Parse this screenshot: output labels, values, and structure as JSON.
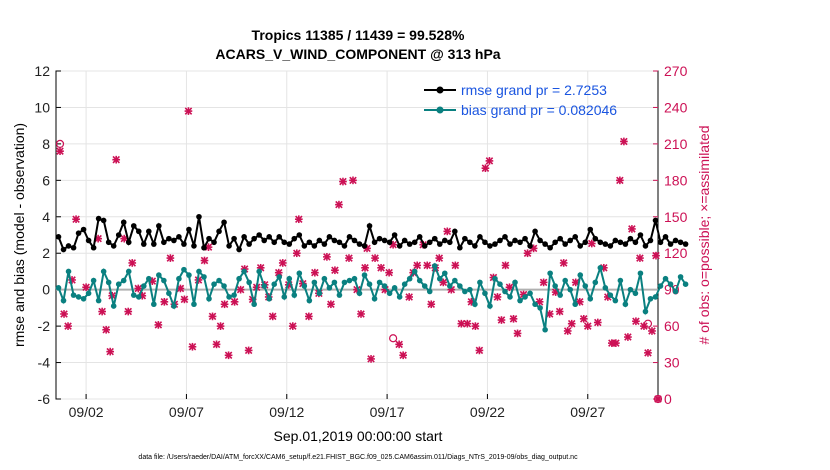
{
  "chart_data": {
    "type": "line",
    "title_line1": "Tropics 11385 / 11439 = 99.528%",
    "title_line2": "ACARS_V_WIND_COMPONENT @ 313 hPa",
    "xlabel": "Sep.01,2019 00:00:00 start",
    "ylabel_left": "rmse and bias (model - observation)",
    "ylabel_right": "# of obs: o=possible; ×=assimilated",
    "footer": "data file: /Users/raeder/DAI/ATM_forcXX/CAM6_setup/f.e21.FHIST_BGC.f09_025.CAM6assim.011/Diags_NTrS_2019-09/obs_diag_output.nc",
    "xlim": [
      0.5,
      30.5
    ],
    "ylim_left": [
      -6,
      12
    ],
    "ylim_right": [
      0,
      270
    ],
    "x_ticks": [
      {
        "value": 2,
        "label": "09/02"
      },
      {
        "value": 7,
        "label": "09/07"
      },
      {
        "value": 12,
        "label": "09/12"
      },
      {
        "value": 17,
        "label": "09/17"
      },
      {
        "value": 22,
        "label": "09/22"
      },
      {
        "value": 27,
        "label": "09/27"
      }
    ],
    "y_ticks_left": [
      {
        "value": 12,
        "label": "12"
      },
      {
        "value": 10,
        "label": "10"
      },
      {
        "value": 8,
        "label": "8"
      },
      {
        "value": 6,
        "label": "6"
      },
      {
        "value": 4,
        "label": "4"
      },
      {
        "value": 2,
        "label": "2"
      },
      {
        "value": 0,
        "label": "0"
      },
      {
        "value": -2,
        "label": "-2"
      },
      {
        "value": -4,
        "label": "-4"
      },
      {
        "value": -6,
        "label": "-6"
      }
    ],
    "y_ticks_right": [
      {
        "value": 270,
        "label": "270"
      },
      {
        "value": 240,
        "label": "240"
      },
      {
        "value": 210,
        "label": "210"
      },
      {
        "value": 180,
        "label": "180"
      },
      {
        "value": 150,
        "label": "150"
      },
      {
        "value": 120,
        "label": "120"
      },
      {
        "value": 90,
        "label": "90"
      },
      {
        "value": 60,
        "label": "60"
      },
      {
        "value": 30,
        "label": "30"
      },
      {
        "value": 0,
        "label": "0"
      }
    ],
    "legend": [
      {
        "name": "rmse grand pr = 2.7253",
        "color": "#000000"
      },
      {
        "name": "bias grand pr = 0.082046",
        "color": "#0a8080"
      }
    ],
    "x_start": 0.625,
    "x_step": 0.25,
    "series": [
      {
        "name": "rmse",
        "color": "#000000",
        "values": [
          2.9,
          2.2,
          2.4,
          2.3,
          3.1,
          3.3,
          2.7,
          2.3,
          3.9,
          3.8,
          2.6,
          2.4,
          3.0,
          3.7,
          2.6,
          3.5,
          3.2,
          2.5,
          3.2,
          2.5,
          3.5,
          2.6,
          2.8,
          2.7,
          2.9,
          2.5,
          3.3,
          2.4,
          4.0,
          2.3,
          2.8,
          2.6,
          3.2,
          3.7,
          2.4,
          2.8,
          2.2,
          2.9,
          2.5,
          2.8,
          3.0,
          2.7,
          2.9,
          2.6,
          2.9,
          2.6,
          2.5,
          2.8,
          3.0,
          2.4,
          2.6,
          2.4,
          2.7,
          2.5,
          2.9,
          2.7,
          2.6,
          2.4,
          2.9,
          2.7,
          2.5,
          2.4,
          3.5,
          2.6,
          2.8,
          2.7,
          2.6,
          3.0,
          2.4,
          2.7,
          2.5,
          2.6,
          2.9,
          2.4,
          2.6,
          2.8,
          2.5,
          2.7,
          2.6,
          3.2,
          2.3,
          2.8,
          2.6,
          2.4,
          2.9,
          2.6,
          2.4,
          2.5,
          2.7,
          2.9,
          2.5,
          2.7,
          2.6,
          2.8,
          2.4,
          3.2,
          2.7,
          2.5,
          2.3,
          2.6,
          2.8,
          2.5,
          2.7,
          2.9,
          2.4,
          2.6,
          3.3,
          2.8,
          2.6,
          2.5,
          2.4,
          2.7,
          2.6,
          2.5,
          2.8,
          2.6,
          3.0,
          2.4,
          2.7,
          3.8,
          2.6,
          2.9,
          2.5,
          2.7,
          2.6,
          2.5
        ]
      },
      {
        "name": "bias",
        "color": "#0a8080",
        "values": [
          0.1,
          -0.6,
          1.0,
          -0.3,
          -0.4,
          -0.5,
          -0.2,
          0.5,
          -0.6,
          1.0,
          0.4,
          -0.9,
          0.3,
          0.5,
          1.0,
          -0.3,
          -0.4,
          0.2,
          0.6,
          -0.8,
          0.8,
          0.5,
          -0.2,
          -0.9,
          0.6,
          1.1,
          0.8,
          -0.8,
          1.0,
          0.7,
          -0.5,
          0.3,
          0.5,
          0.2,
          -0.4,
          -0.3,
          0.6,
          1.0,
          0.4,
          -0.8,
          1.0,
          0.2,
          -0.5,
          0.3,
          0.7,
          -0.4,
          0.6,
          -0.3,
          0.9,
          0.2,
          -0.6,
          0.4,
          -0.2,
          0.6,
          0.1,
          0.4,
          -0.3,
          0.4,
          0.5,
          0.6,
          -0.2,
          0.8,
          0.3,
          -0.5,
          0.4,
          0.2,
          -0.2,
          0.1,
          -0.4,
          0.3,
          0.6,
          1.0,
          0.5,
          0.2,
          -0.1,
          1.3,
          0.6,
          0.9,
          0.2,
          0.5,
          0.2,
          -0.1,
          0.0,
          -0.8,
          0.4,
          -0.2,
          -0.9,
          0.6,
          0.3,
          -0.1,
          -0.4,
          0.4,
          -0.6,
          -0.4,
          -0.2,
          -0.8,
          -1.0,
          -2.2,
          0.9,
          0.2,
          -0.3,
          0.5,
          0.0,
          -0.8,
          0.8,
          0.2,
          -0.5,
          0.4,
          1.2,
          0.1,
          -0.3,
          -0.6,
          0.5,
          -0.8,
          0.0,
          -0.2,
          0.9,
          -1.2,
          -0.5,
          -0.4,
          0.2,
          0.6,
          0.3,
          -0.1,
          0.7,
          0.3
        ]
      }
    ],
    "obs_assimilated": [
      {
        "x": 0.7,
        "y": 204
      },
      {
        "x": 0.9,
        "y": 70
      },
      {
        "x": 1.1,
        "y": 60
      },
      {
        "x": 1.3,
        "y": 98
      },
      {
        "x": 1.5,
        "y": 148
      },
      {
        "x": 2.0,
        "y": 92
      },
      {
        "x": 2.6,
        "y": 132
      },
      {
        "x": 2.8,
        "y": 72
      },
      {
        "x": 3.0,
        "y": 57
      },
      {
        "x": 3.2,
        "y": 39
      },
      {
        "x": 3.3,
        "y": 85
      },
      {
        "x": 3.5,
        "y": 197
      },
      {
        "x": 3.9,
        "y": 132
      },
      {
        "x": 4.1,
        "y": 72
      },
      {
        "x": 4.3,
        "y": 112
      },
      {
        "x": 4.6,
        "y": 91
      },
      {
        "x": 4.8,
        "y": 85
      },
      {
        "x": 5.3,
        "y": 97
      },
      {
        "x": 5.6,
        "y": 61
      },
      {
        "x": 5.9,
        "y": 80
      },
      {
        "x": 6.2,
        "y": 116
      },
      {
        "x": 6.4,
        "y": 78
      },
      {
        "x": 6.7,
        "y": 91
      },
      {
        "x": 6.9,
        "y": 82
      },
      {
        "x": 7.1,
        "y": 237
      },
      {
        "x": 7.3,
        "y": 43
      },
      {
        "x": 7.6,
        "y": 98
      },
      {
        "x": 7.9,
        "y": 114
      },
      {
        "x": 8.1,
        "y": 125
      },
      {
        "x": 8.3,
        "y": 68
      },
      {
        "x": 8.5,
        "y": 45
      },
      {
        "x": 8.7,
        "y": 60
      },
      {
        "x": 8.9,
        "y": 78
      },
      {
        "x": 9.1,
        "y": 36
      },
      {
        "x": 9.4,
        "y": 80
      },
      {
        "x": 9.7,
        "y": 90
      },
      {
        "x": 9.9,
        "y": 107
      },
      {
        "x": 10.1,
        "y": 40
      },
      {
        "x": 10.3,
        "y": 82
      },
      {
        "x": 10.5,
        "y": 92
      },
      {
        "x": 10.7,
        "y": 108
      },
      {
        "x": 10.9,
        "y": 94
      },
      {
        "x": 11.1,
        "y": 84
      },
      {
        "x": 11.3,
        "y": 68
      },
      {
        "x": 11.6,
        "y": 104
      },
      {
        "x": 11.8,
        "y": 112
      },
      {
        "x": 12.1,
        "y": 94
      },
      {
        "x": 12.3,
        "y": 60
      },
      {
        "x": 12.5,
        "y": 120
      },
      {
        "x": 12.6,
        "y": 148
      },
      {
        "x": 12.8,
        "y": 95
      },
      {
        "x": 13.1,
        "y": 68
      },
      {
        "x": 13.4,
        "y": 104
      },
      {
        "x": 13.6,
        "y": 87
      },
      {
        "x": 14.0,
        "y": 117
      },
      {
        "x": 14.2,
        "y": 78
      },
      {
        "x": 14.4,
        "y": 106
      },
      {
        "x": 14.6,
        "y": 160
      },
      {
        "x": 14.8,
        "y": 179
      },
      {
        "x": 15.1,
        "y": 116
      },
      {
        "x": 15.3,
        "y": 180
      },
      {
        "x": 15.5,
        "y": 90
      },
      {
        "x": 15.7,
        "y": 70
      },
      {
        "x": 15.9,
        "y": 108
      },
      {
        "x": 16.0,
        "y": 124
      },
      {
        "x": 16.2,
        "y": 33
      },
      {
        "x": 16.4,
        "y": 116
      },
      {
        "x": 16.7,
        "y": 108
      },
      {
        "x": 16.9,
        "y": 90
      },
      {
        "x": 17.1,
        "y": 104
      },
      {
        "x": 17.3,
        "y": 127
      },
      {
        "x": 17.6,
        "y": 45
      },
      {
        "x": 17.8,
        "y": 36
      },
      {
        "x": 18.1,
        "y": 84
      },
      {
        "x": 18.3,
        "y": 104
      },
      {
        "x": 18.5,
        "y": 110
      },
      {
        "x": 18.8,
        "y": 127
      },
      {
        "x": 19.0,
        "y": 110
      },
      {
        "x": 19.2,
        "y": 78
      },
      {
        "x": 19.4,
        "y": 108
      },
      {
        "x": 19.6,
        "y": 116
      },
      {
        "x": 19.8,
        "y": 96
      },
      {
        "x": 20.0,
        "y": 138
      },
      {
        "x": 20.2,
        "y": 90
      },
      {
        "x": 20.4,
        "y": 110
      },
      {
        "x": 20.7,
        "y": 62
      },
      {
        "x": 21.0,
        "y": 62
      },
      {
        "x": 21.2,
        "y": 80
      },
      {
        "x": 21.4,
        "y": 60
      },
      {
        "x": 21.6,
        "y": 40
      },
      {
        "x": 21.9,
        "y": 190
      },
      {
        "x": 22.1,
        "y": 196
      },
      {
        "x": 22.3,
        "y": 100
      },
      {
        "x": 22.5,
        "y": 84
      },
      {
        "x": 22.7,
        "y": 65
      },
      {
        "x": 22.9,
        "y": 110
      },
      {
        "x": 23.1,
        "y": 92
      },
      {
        "x": 23.3,
        "y": 66
      },
      {
        "x": 23.5,
        "y": 54
      },
      {
        "x": 23.8,
        "y": 86
      },
      {
        "x": 24.0,
        "y": 120
      },
      {
        "x": 24.3,
        "y": 124
      },
      {
        "x": 24.6,
        "y": 80
      },
      {
        "x": 24.8,
        "y": 96
      },
      {
        "x": 25.1,
        "y": 70
      },
      {
        "x": 25.4,
        "y": 88
      },
      {
        "x": 25.6,
        "y": 72
      },
      {
        "x": 25.8,
        "y": 112
      },
      {
        "x": 26.0,
        "y": 56
      },
      {
        "x": 26.2,
        "y": 62
      },
      {
        "x": 26.4,
        "y": 96
      },
      {
        "x": 26.6,
        "y": 80
      },
      {
        "x": 26.8,
        "y": 66
      },
      {
        "x": 27.0,
        "y": 60
      },
      {
        "x": 27.2,
        "y": 128
      },
      {
        "x": 27.5,
        "y": 63
      },
      {
        "x": 27.8,
        "y": 108
      },
      {
        "x": 28.0,
        "y": 84
      },
      {
        "x": 28.2,
        "y": 46
      },
      {
        "x": 28.4,
        "y": 46
      },
      {
        "x": 28.6,
        "y": 180
      },
      {
        "x": 28.8,
        "y": 212
      },
      {
        "x": 29.0,
        "y": 51
      },
      {
        "x": 29.2,
        "y": 140
      },
      {
        "x": 29.4,
        "y": 64
      },
      {
        "x": 29.6,
        "y": 116
      },
      {
        "x": 29.8,
        "y": 60
      },
      {
        "x": 30.0,
        "y": 38
      },
      {
        "x": 30.2,
        "y": 56
      },
      {
        "x": 30.4,
        "y": 118
      },
      {
        "x": 30.5,
        "y": 0
      }
    ],
    "obs_possible": [
      {
        "x": 0.7,
        "y": 210
      },
      {
        "x": 17.3,
        "y": 50
      },
      {
        "x": 30.0,
        "y": 62
      },
      {
        "x": 30.5,
        "y": 0
      }
    ]
  }
}
